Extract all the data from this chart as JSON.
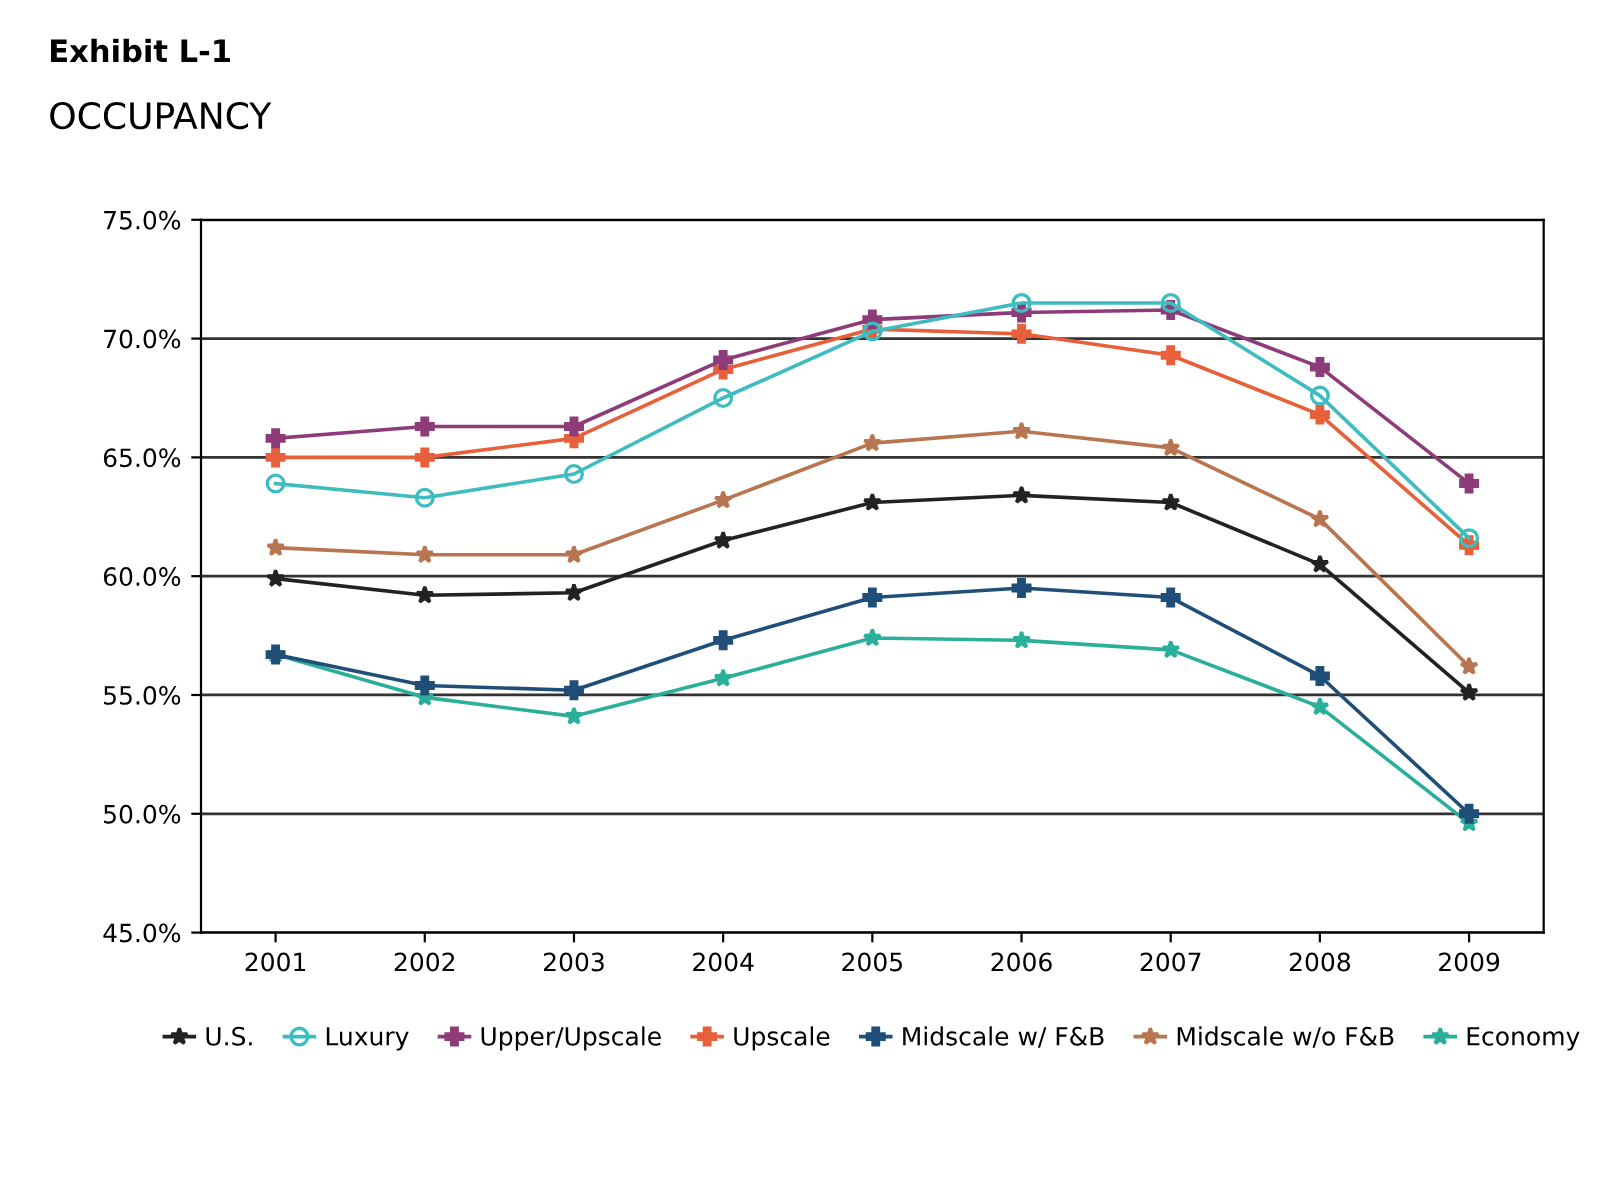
{
  "chart_data": {
    "type": "line",
    "title": "Exhibit L-1",
    "subtitle": "OCCUPANCY",
    "categories": [
      "2001",
      "2002",
      "2003",
      "2004",
      "2005",
      "2006",
      "2007",
      "2008",
      "2009"
    ],
    "series": [
      {
        "name": "U.S.",
        "color": "#222222",
        "marker": "star",
        "values": [
          59.9,
          59.2,
          59.3,
          61.5,
          63.1,
          63.4,
          63.1,
          60.5,
          55.1
        ]
      },
      {
        "name": "Luxury",
        "color": "#3fbcc0",
        "marker": "circle",
        "values": [
          63.9,
          63.3,
          64.3,
          67.5,
          70.3,
          71.5,
          71.5,
          67.6,
          61.6
        ]
      },
      {
        "name": "Upper/Upscale",
        "color": "#8e3b7a",
        "marker": "cross",
        "values": [
          65.8,
          66.3,
          66.3,
          69.1,
          70.8,
          71.1,
          71.2,
          68.8,
          63.9
        ]
      },
      {
        "name": "Upscale",
        "color": "#e8603a",
        "marker": "cross",
        "values": [
          65.0,
          65.0,
          65.8,
          68.7,
          70.4,
          70.2,
          69.3,
          66.8,
          61.3
        ]
      },
      {
        "name": "Midscale w/ F&B",
        "color": "#1f4e79",
        "marker": "cross",
        "values": [
          56.7,
          55.4,
          55.2,
          57.3,
          59.1,
          59.5,
          59.1,
          55.8,
          50.0
        ]
      },
      {
        "name": "Midscale w/o F&B",
        "color": "#b87550",
        "marker": "star",
        "values": [
          61.2,
          60.9,
          60.9,
          63.2,
          65.6,
          66.1,
          65.4,
          62.4,
          56.2
        ]
      },
      {
        "name": "Economy",
        "color": "#2ab09a",
        "marker": "star",
        "values": [
          56.7,
          54.9,
          54.1,
          55.7,
          57.4,
          57.3,
          56.9,
          54.5,
          49.6
        ]
      }
    ],
    "ylim": [
      45,
      75
    ],
    "yticks": [
      {
        "value": 45,
        "label": "45.0%"
      },
      {
        "value": 50,
        "label": "50.0%"
      },
      {
        "value": 55,
        "label": "55.0%"
      },
      {
        "value": 60,
        "label": "60.0%"
      },
      {
        "value": 65,
        "label": "65.0%"
      },
      {
        "value": 70,
        "label": "70.0%"
      },
      {
        "value": 75,
        "label": "75.0%"
      }
    ],
    "grid": "y",
    "legend": "bottom",
    "line_style": "solid"
  }
}
